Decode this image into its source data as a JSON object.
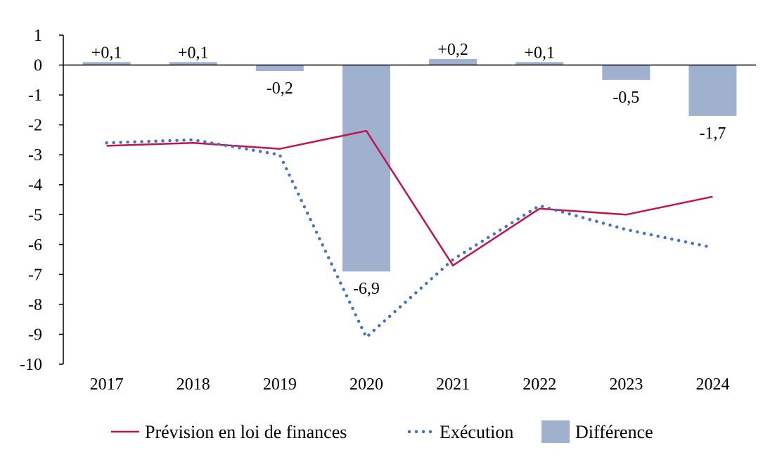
{
  "chart_data": {
    "type": "bar",
    "categories": [
      "2017",
      "2018",
      "2019",
      "2020",
      "2021",
      "2022",
      "2023",
      "2024"
    ],
    "series": [
      {
        "name": "Prévision en loi de finances",
        "type": "line",
        "style": "solid",
        "color": "#C0144C",
        "values": [
          -2.7,
          -2.6,
          -2.8,
          -2.2,
          -6.7,
          -4.8,
          -5.0,
          -4.4
        ]
      },
      {
        "name": "Exécution",
        "type": "line",
        "style": "dotted",
        "color": "#4472C4",
        "values": [
          -2.6,
          -2.5,
          -3.0,
          -9.1,
          -6.5,
          -4.7,
          -5.5,
          -6.1
        ]
      },
      {
        "name": "Différence",
        "type": "bar",
        "color": "#A0B1D0",
        "values": [
          0.1,
          0.1,
          -0.2,
          -6.9,
          0.2,
          0.1,
          -0.5,
          -1.7
        ],
        "labels": [
          "+0,1",
          "+0,1",
          "-0,2",
          "-6,9",
          "+0,2",
          "+0,1",
          "-0,5",
          "-1,7"
        ]
      }
    ],
    "title": "",
    "xlabel": "",
    "ylabel": "",
    "ylim": [
      -10,
      1
    ],
    "yticks": [
      1,
      0,
      -1,
      -2,
      -3,
      -4,
      -5,
      -6,
      -7,
      -8,
      -9,
      -10
    ],
    "ytick_labels": [
      "1",
      "0",
      "-1",
      "-2",
      "-3",
      "-4",
      "-5",
      "-6",
      "-7",
      "-8",
      "-9",
      "-10"
    ],
    "grid": false,
    "legend_position": "bottom"
  }
}
